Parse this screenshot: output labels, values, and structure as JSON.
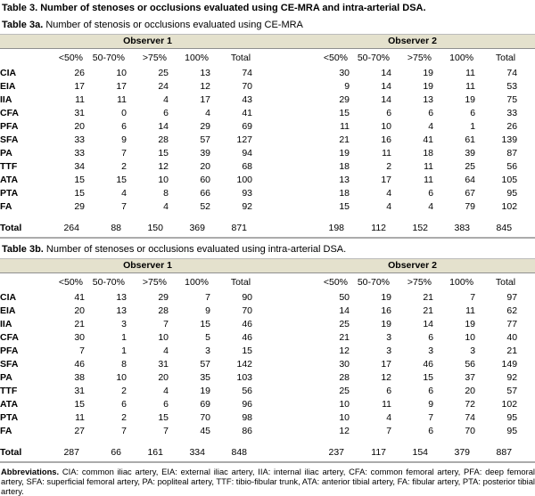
{
  "title": "Table 3. Number of stenoses or occlusions evaluated using CE-MRA and intra-arterial DSA.",
  "colors": {
    "band_background": "#e4e1cd",
    "band_border_top": "#bcbcbc",
    "band_border_bottom": "#8f8f8f",
    "table_bottom_rule": "#ababab",
    "text": "#000000"
  },
  "tables": [
    {
      "caption_prefix": "Table 3a.",
      "caption_rest": " Number of stenosis or occlusions evaluated using CE-MRA",
      "observers": [
        "Observer 1",
        "Observer 2"
      ],
      "col_headers": [
        "<50%",
        "50-70%",
        ">75%",
        "100%",
        "Total"
      ],
      "rows": [
        {
          "label": "CIA",
          "obs1": [
            26,
            10,
            25,
            13,
            74
          ],
          "obs2": [
            30,
            14,
            19,
            11,
            74
          ]
        },
        {
          "label": "EIA",
          "obs1": [
            17,
            17,
            24,
            12,
            70
          ],
          "obs2": [
            9,
            14,
            19,
            11,
            53
          ]
        },
        {
          "label": "IIA",
          "obs1": [
            11,
            11,
            4,
            17,
            43
          ],
          "obs2": [
            29,
            14,
            13,
            19,
            75
          ]
        },
        {
          "label": "CFA",
          "obs1": [
            31,
            0,
            6,
            4,
            41
          ],
          "obs2": [
            15,
            6,
            6,
            6,
            33
          ]
        },
        {
          "label": "PFA",
          "obs1": [
            20,
            6,
            14,
            29,
            69
          ],
          "obs2": [
            11,
            10,
            4,
            1,
            26
          ]
        },
        {
          "label": "SFA",
          "obs1": [
            33,
            9,
            28,
            57,
            127
          ],
          "obs2": [
            21,
            16,
            41,
            61,
            139
          ]
        },
        {
          "label": "PA",
          "obs1": [
            33,
            7,
            15,
            39,
            94
          ],
          "obs2": [
            19,
            11,
            18,
            39,
            87
          ]
        },
        {
          "label": "TTF",
          "obs1": [
            34,
            2,
            12,
            20,
            68
          ],
          "obs2": [
            18,
            2,
            11,
            25,
            56
          ]
        },
        {
          "label": "ATA",
          "obs1": [
            15,
            15,
            10,
            60,
            100
          ],
          "obs2": [
            13,
            17,
            11,
            64,
            105
          ]
        },
        {
          "label": "PTA",
          "obs1": [
            15,
            4,
            8,
            66,
            93
          ],
          "obs2": [
            18,
            4,
            6,
            67,
            95
          ]
        },
        {
          "label": "FA",
          "obs1": [
            29,
            7,
            4,
            52,
            92
          ],
          "obs2": [
            15,
            4,
            4,
            79,
            102
          ]
        }
      ],
      "total": {
        "label": "Total",
        "obs1": [
          264,
          88,
          150,
          369,
          871
        ],
        "obs2": [
          198,
          112,
          152,
          383,
          845
        ]
      }
    },
    {
      "caption_prefix": "Table 3b.",
      "caption_rest": " Number of stenoses or occlusions evaluated using intra-arterial DSA.",
      "observers": [
        "Observer 1",
        "Observer 2"
      ],
      "col_headers": [
        "<50%",
        "50-70%",
        ">75%",
        "100%",
        "Total"
      ],
      "rows": [
        {
          "label": "CIA",
          "obs1": [
            41,
            13,
            29,
            7,
            90
          ],
          "obs2": [
            50,
            19,
            21,
            7,
            97
          ]
        },
        {
          "label": "EIA",
          "obs1": [
            20,
            13,
            28,
            9,
            70
          ],
          "obs2": [
            14,
            16,
            21,
            11,
            62
          ]
        },
        {
          "label": "IIA",
          "obs1": [
            21,
            3,
            7,
            15,
            46
          ],
          "obs2": [
            25,
            19,
            14,
            19,
            77
          ]
        },
        {
          "label": "CFA",
          "obs1": [
            30,
            1,
            10,
            5,
            46
          ],
          "obs2": [
            21,
            3,
            6,
            10,
            40
          ]
        },
        {
          "label": "PFA",
          "obs1": [
            7,
            1,
            4,
            3,
            15
          ],
          "obs2": [
            12,
            3,
            3,
            3,
            21
          ]
        },
        {
          "label": "SFA",
          "obs1": [
            46,
            8,
            31,
            57,
            142
          ],
          "obs2": [
            30,
            17,
            46,
            56,
            149
          ]
        },
        {
          "label": "PA",
          "obs1": [
            38,
            10,
            20,
            35,
            103
          ],
          "obs2": [
            28,
            12,
            15,
            37,
            92
          ]
        },
        {
          "label": "TTF",
          "obs1": [
            31,
            2,
            4,
            19,
            56
          ],
          "obs2": [
            25,
            6,
            6,
            20,
            57
          ]
        },
        {
          "label": "ATA",
          "obs1": [
            15,
            6,
            6,
            69,
            96
          ],
          "obs2": [
            10,
            11,
            9,
            72,
            102
          ]
        },
        {
          "label": "PTA",
          "obs1": [
            11,
            2,
            15,
            70,
            98
          ],
          "obs2": [
            10,
            4,
            7,
            74,
            95
          ]
        },
        {
          "label": "FA",
          "obs1": [
            27,
            7,
            7,
            45,
            86
          ],
          "obs2": [
            12,
            7,
            6,
            70,
            95
          ]
        }
      ],
      "total": {
        "label": "Total",
        "obs1": [
          287,
          66,
          161,
          334,
          848
        ],
        "obs2": [
          237,
          117,
          154,
          379,
          887
        ]
      }
    }
  ],
  "footnote_prefix": "Abbreviations.",
  "footnote_rest": " CIA: common iliac artery, EIA: external iliac artery, IIA: internal iliac artery, CFA: common femoral artery, PFA: deep femoral artery, SFA: superficial femoral artery, PA: popliteal artery, TTF: tibio-fibular trunk, ATA: anterior tibial artery, FA: fibular artery, PTA: posterior tibial artery."
}
